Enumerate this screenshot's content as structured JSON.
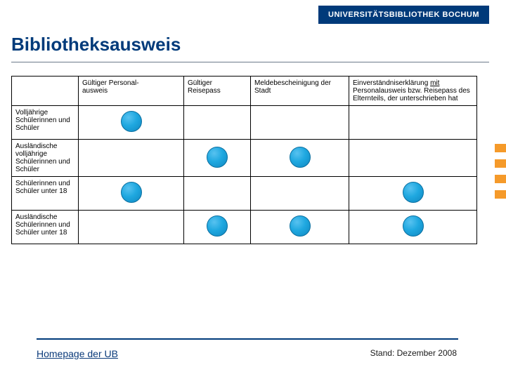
{
  "brand": "UNIVERSITÄTSBIBLIOTHEK BOCHUM",
  "title": "Bibliotheksausweis",
  "columns": {
    "c0": "",
    "c1": "Gültiger Personal-\nausweis",
    "c2": "Gültiger Reisepass",
    "c3": "Meldebescheinigung der Stadt",
    "c4_pre": "Einverständniserklärung ",
    "c4_mit": "mit",
    "c4_post": " Personalausweis bzw. Reisepass des Elternteils, der unterschrieben hat"
  },
  "rows": [
    {
      "label": "Volljährige Schülerinnen und Schüler",
      "dots": [
        true,
        false,
        false,
        false
      ]
    },
    {
      "label": "Ausländische volljährige Schülerinnen und Schüler",
      "dots": [
        false,
        true,
        true,
        false
      ]
    },
    {
      "label": "Schülerinnen und Schüler unter 18",
      "dots": [
        true,
        false,
        false,
        true
      ]
    },
    {
      "label": "Ausländische Schülerinnen und Schüler unter 18",
      "dots": [
        false,
        true,
        true,
        true
      ]
    }
  ],
  "footer": {
    "link": "Homepage der UB",
    "stand": "Stand: Dezember 2008"
  },
  "colors": {
    "brand_bg": "#003a7a",
    "accent": "#f59a2a",
    "dot_fill": "#1fa8e0",
    "dot_border": "#0a6fa0"
  }
}
